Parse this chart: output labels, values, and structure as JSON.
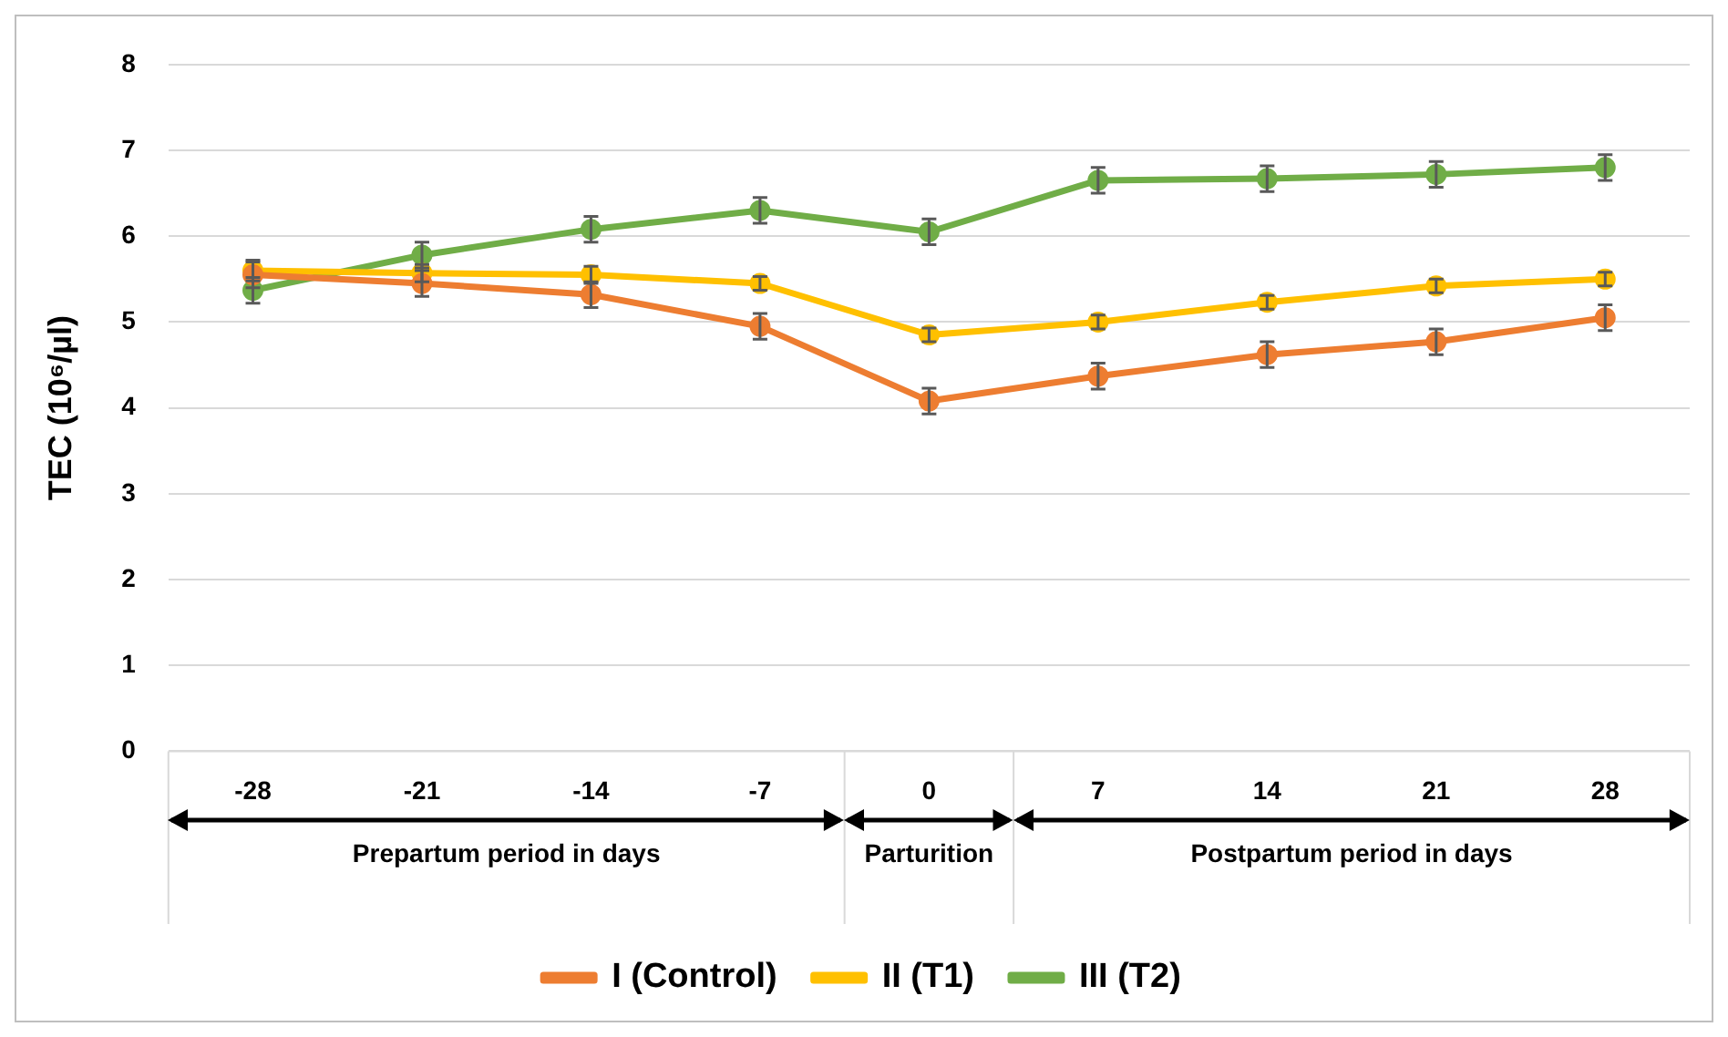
{
  "chart_data": {
    "type": "line",
    "ylabel": "TEC (10⁶/µl)",
    "categories": [
      "-28",
      "-21",
      "-14",
      "-7",
      "0",
      "7",
      "14",
      "21",
      "28"
    ],
    "series": [
      {
        "name": "I (Control)",
        "color": "#ed7d31",
        "values": [
          5.55,
          5.45,
          5.32,
          4.95,
          4.08,
          4.37,
          4.62,
          4.77,
          5.05
        ],
        "errors": [
          0.15,
          0.15,
          0.15,
          0.15,
          0.15,
          0.15,
          0.15,
          0.15,
          0.15
        ]
      },
      {
        "name": "II (T1)",
        "color": "#ffc000",
        "values": [
          5.6,
          5.57,
          5.55,
          5.45,
          4.85,
          5.0,
          5.23,
          5.42,
          5.5
        ],
        "errors": [
          0.12,
          0.1,
          0.1,
          0.08,
          0.08,
          0.08,
          0.08,
          0.08,
          0.08
        ]
      },
      {
        "name": "III (T2)",
        "color": "#70ad47",
        "values": [
          5.37,
          5.78,
          6.08,
          6.3,
          6.05,
          6.65,
          6.67,
          6.72,
          6.8
        ],
        "errors": [
          0.15,
          0.15,
          0.15,
          0.15,
          0.15,
          0.15,
          0.15,
          0.15,
          0.15
        ]
      }
    ],
    "annotations": [
      "Prepartum period in days",
      "Parturition",
      "Postpartum period in days"
    ],
    "ylim": [
      0,
      8
    ],
    "yticks": [
      0,
      1,
      2,
      3,
      4,
      5,
      6,
      7,
      8
    ],
    "grid": "y",
    "legend": "bottom",
    "marker": "circle",
    "line_style": "solid"
  }
}
